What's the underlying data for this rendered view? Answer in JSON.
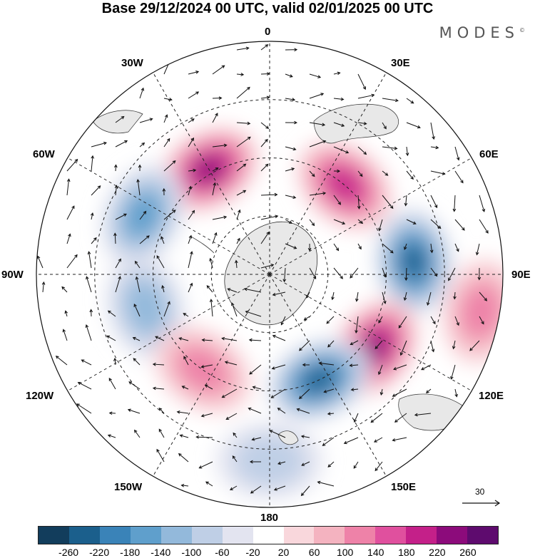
{
  "title": "Base 29/12/2024 00 UTC, valid 02/01/2025 00 UTC",
  "brand": "MODES",
  "brand_mark": "©",
  "longitude_labels": {
    "n0": "0",
    "n30e": "30E",
    "n60e": "60E",
    "n90e": "90E",
    "n120e": "120E",
    "n150e": "150E",
    "n180": "180",
    "n150w": "150W",
    "n120w": "120W",
    "n90w": "90W",
    "n60w": "60W",
    "n30w": "30W"
  },
  "reference_vector": "30",
  "colorbar": {
    "levels": [
      "-260",
      "-220",
      "-180",
      "-140",
      "-100",
      "-60",
      "-20",
      "20",
      "60",
      "100",
      "140",
      "180",
      "220",
      "260"
    ],
    "colors": [
      "#123d5c",
      "#1b5f8c",
      "#3a83b8",
      "#5f9fcc",
      "#93b9db",
      "#bfcfe6",
      "#e3e4f0",
      "#ffffff",
      "#f9d7dc",
      "#f4b3c0",
      "#ee82a8",
      "#e0509e",
      "#c42089",
      "#8c0b7b",
      "#5e0b6e"
    ]
  },
  "map": {
    "projection": "south polar stereographic",
    "land_color": "#e8e8e8",
    "anomalies": [
      {
        "lon": 330,
        "lat_r": 0.52,
        "value": 230
      },
      {
        "lon": 295,
        "lat_r": 0.6,
        "value": -160
      },
      {
        "lon": 40,
        "lat_r": 0.5,
        "value": 200
      },
      {
        "lon": 85,
        "lat_r": 0.62,
        "value": -250
      },
      {
        "lon": 125,
        "lat_r": 0.55,
        "value": 230
      },
      {
        "lon": 155,
        "lat_r": 0.5,
        "value": -220
      },
      {
        "lon": 255,
        "lat_r": 0.55,
        "value": -120
      },
      {
        "lon": 215,
        "lat_r": 0.5,
        "value": 130
      },
      {
        "lon": 100,
        "lat_r": 0.92,
        "value": 110
      },
      {
        "lon": 180,
        "lat_r": 0.8,
        "value": -70
      }
    ]
  }
}
